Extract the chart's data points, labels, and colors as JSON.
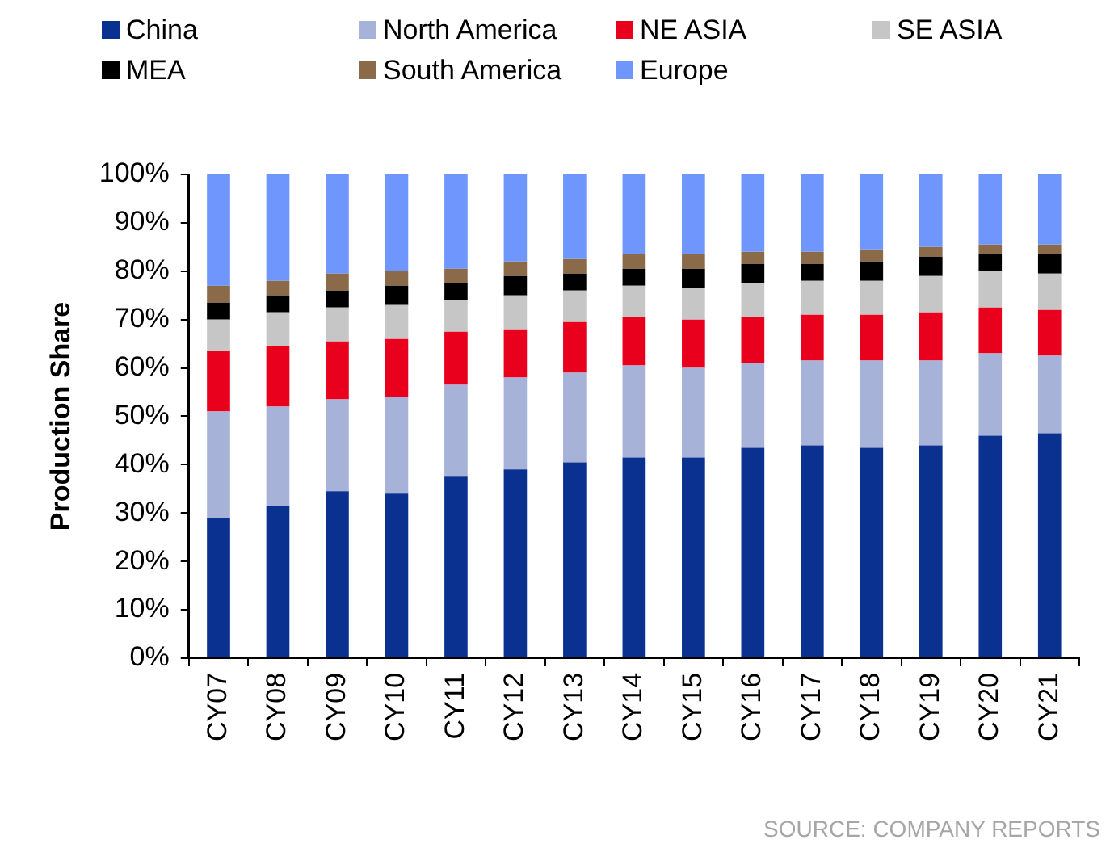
{
  "chart_data": {
    "type": "bar",
    "stacked": true,
    "ylabel": "Production Share",
    "legend": "top",
    "categories": [
      "CY07",
      "CY08",
      "CY09",
      "CY10",
      "CY11",
      "CY12",
      "CY13",
      "CY14",
      "CY15",
      "CY16",
      "CY17",
      "CY18",
      "CY19",
      "CY20",
      "CY21"
    ],
    "series": [
      {
        "name": "China",
        "color": "#0a3190",
        "values": [
          29,
          31.5,
          34.5,
          34,
          37.5,
          39,
          40.5,
          41.5,
          41.5,
          43.5,
          44,
          43.5,
          44,
          46,
          46.5
        ]
      },
      {
        "name": "North America",
        "color": "#a6b2d8",
        "values": [
          22,
          20.5,
          19,
          20,
          19,
          19,
          18.5,
          19,
          18.5,
          17.5,
          17.5,
          18,
          17.5,
          17,
          16
        ]
      },
      {
        "name": "NE ASIA",
        "color": "#e8001c",
        "values": [
          12.5,
          12.5,
          12,
          12,
          11,
          10,
          10.5,
          10,
          10,
          9.5,
          9.5,
          9.5,
          10,
          9.5,
          9.5
        ]
      },
      {
        "name": "SE ASIA",
        "color": "#c6c6c6",
        "values": [
          6.5,
          7,
          7,
          7,
          6.5,
          7,
          6.5,
          6.5,
          6.5,
          7,
          7,
          7,
          7.5,
          7.5,
          7.5
        ]
      },
      {
        "name": "MEA",
        "color": "#000000",
        "values": [
          3.5,
          3.5,
          3.5,
          4,
          3.5,
          4,
          3.5,
          3.5,
          4,
          4,
          3.5,
          4,
          4,
          3.5,
          4
        ]
      },
      {
        "name": "South America",
        "color": "#8b6a4a",
        "values": [
          3.5,
          3,
          3.5,
          3,
          3,
          3,
          3,
          3,
          3,
          2.5,
          2.5,
          2.5,
          2,
          2,
          2
        ]
      },
      {
        "name": "Europe",
        "color": "#6f96fd",
        "values": [
          23,
          22,
          20.5,
          20,
          19.5,
          18,
          17.5,
          16.5,
          16.5,
          16,
          16,
          15.5,
          15,
          14.5,
          14.5
        ]
      }
    ],
    "ylim": [
      0,
      100
    ],
    "yticks": [
      {
        "value": 0,
        "label": "0%"
      },
      {
        "value": 10,
        "label": "10%"
      },
      {
        "value": 20,
        "label": "20%"
      },
      {
        "value": 30,
        "label": "30%"
      },
      {
        "value": 40,
        "label": "40%"
      },
      {
        "value": 50,
        "label": "50%"
      },
      {
        "value": 60,
        "label": "60%"
      },
      {
        "value": 70,
        "label": "70%"
      },
      {
        "value": 80,
        "label": "80%"
      },
      {
        "value": 90,
        "label": "90%"
      },
      {
        "value": 100,
        "label": "100%"
      }
    ],
    "annotations": [
      "SOURCE: COMPANY REPORTS"
    ]
  }
}
